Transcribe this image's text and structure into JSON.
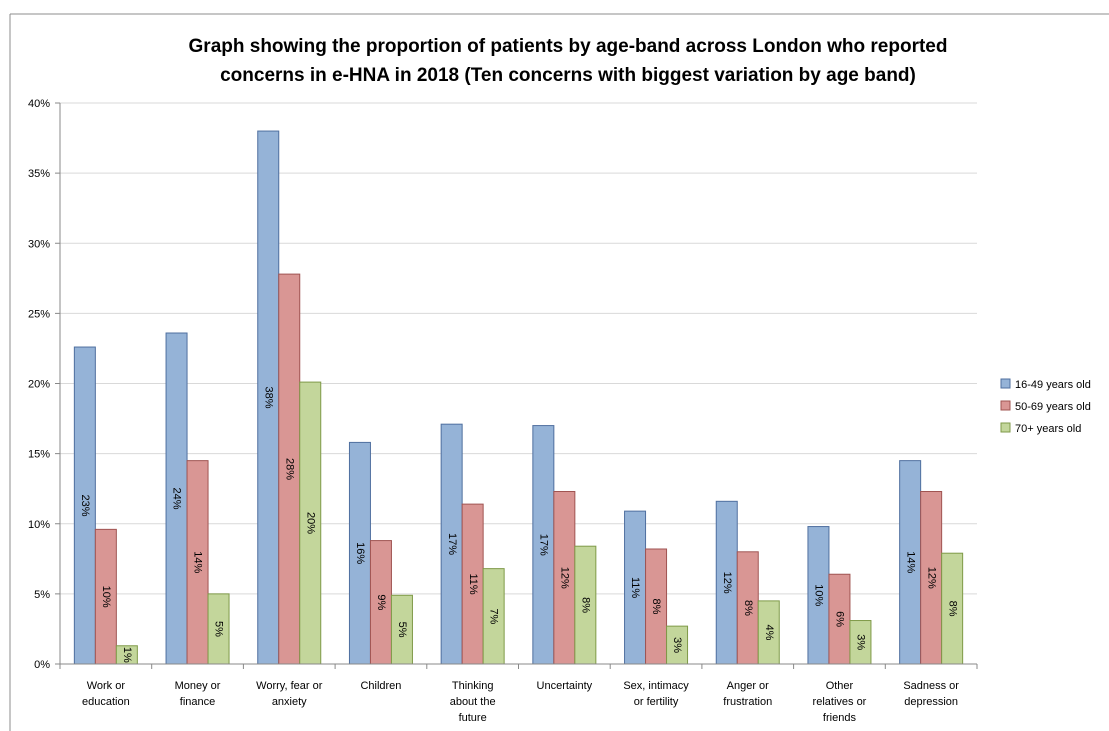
{
  "chart_data": {
    "type": "bar",
    "title_lines": [
      "Graph showing the proportion of patients by age-band across London who reported",
      "concerns in e-HNA in 2018 (Ten concerns with biggest variation by age band)"
    ],
    "categories": [
      [
        "Work or",
        "education"
      ],
      [
        "Money or",
        "finance"
      ],
      [
        "Worry, fear or",
        "anxiety"
      ],
      [
        "Children"
      ],
      [
        "Thinking",
        "about the",
        "future"
      ],
      [
        "Uncertainty"
      ],
      [
        "Sex, intimacy",
        "or fertility"
      ],
      [
        "Anger or",
        "frustration"
      ],
      [
        "Other",
        "relatives or",
        "friends"
      ],
      [
        "Sadness or",
        "depression"
      ]
    ],
    "series": [
      {
        "name": "16-49 years old",
        "color": "#95b3d7",
        "stroke": "#4f6f9f",
        "values": [
          22.6,
          23.6,
          38.0,
          15.8,
          17.1,
          17.0,
          10.9,
          11.6,
          9.8,
          14.5
        ],
        "labels": [
          "23%",
          "24%",
          "38%",
          "16%",
          "17%",
          "17%",
          "11%",
          "12%",
          "10%",
          "14%"
        ]
      },
      {
        "name": "50-69 years old",
        "color": "#d99694",
        "stroke": "#a05452",
        "values": [
          9.6,
          14.5,
          27.8,
          8.8,
          11.4,
          12.3,
          8.2,
          8.0,
          6.4,
          12.3
        ],
        "labels": [
          "10%",
          "14%",
          "28%",
          "9%",
          "11%",
          "12%",
          "8%",
          "8%",
          "6%",
          "12%"
        ]
      },
      {
        "name": "70+ years old",
        "color": "#c3d69b",
        "stroke": "#7f9a48",
        "values": [
          1.3,
          5.0,
          20.1,
          4.9,
          6.8,
          8.4,
          2.7,
          4.5,
          3.1,
          7.9
        ],
        "labels": [
          "1%",
          "5%",
          "20%",
          "5%",
          "7%",
          "8%",
          "3%",
          "4%",
          "3%",
          "8%"
        ]
      }
    ],
    "ylim": [
      0,
      40
    ],
    "yticks": [
      "0%",
      "5%",
      "10%",
      "15%",
      "20%",
      "25%",
      "30%",
      "35%",
      "40%"
    ],
    "ytick_values": [
      0,
      5,
      10,
      15,
      20,
      25,
      30,
      35,
      40
    ],
    "grid": true,
    "legend_position": "right"
  }
}
